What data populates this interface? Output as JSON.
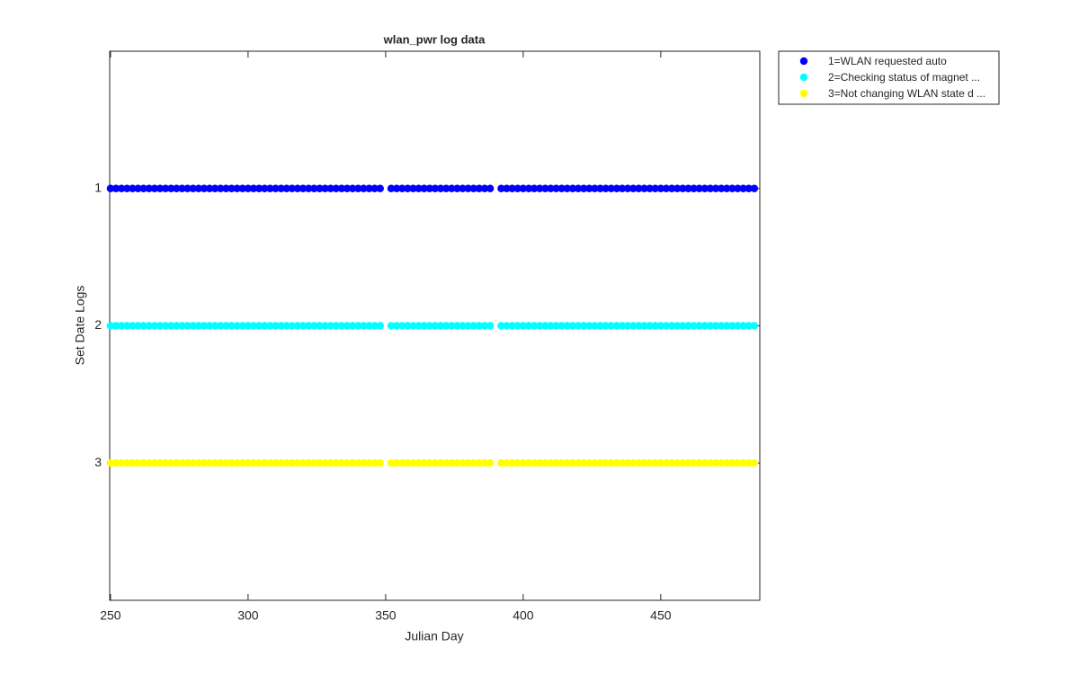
{
  "chart_data": {
    "type": "scatter",
    "title": "wlan_pwr log data",
    "xlabel": "Julian Day",
    "ylabel": "Set Date Logs",
    "x": [
      250,
      252,
      254,
      256,
      258,
      260,
      262,
      264,
      266,
      268,
      270,
      272,
      274,
      276,
      278,
      280,
      282,
      284,
      286,
      288,
      290,
      292,
      294,
      296,
      298,
      300,
      302,
      304,
      306,
      308,
      310,
      312,
      314,
      316,
      318,
      320,
      322,
      324,
      326,
      328,
      330,
      332,
      334,
      336,
      338,
      340,
      342,
      344,
      346,
      348,
      352,
      354,
      356,
      358,
      360,
      362,
      364,
      366,
      368,
      370,
      372,
      374,
      376,
      378,
      380,
      382,
      384,
      386,
      388,
      392,
      394,
      396,
      398,
      400,
      402,
      404,
      406,
      408,
      410,
      412,
      414,
      416,
      418,
      420,
      422,
      424,
      426,
      428,
      430,
      432,
      434,
      436,
      438,
      440,
      442,
      444,
      446,
      448,
      450,
      452,
      454,
      456,
      458,
      460,
      462,
      464,
      466,
      468,
      470,
      472,
      474,
      476,
      478,
      480,
      482,
      484
    ],
    "series": [
      {
        "name": "1=WLAN requested auto",
        "color": "#0000ff",
        "values": [
          1,
          1,
          1,
          1,
          1,
          1,
          1,
          1,
          1,
          1,
          1,
          1,
          1,
          1,
          1,
          1,
          1,
          1,
          1,
          1,
          1,
          1,
          1,
          1,
          1,
          1,
          1,
          1,
          1,
          1,
          1,
          1,
          1,
          1,
          1,
          1,
          1,
          1,
          1,
          1,
          1,
          1,
          1,
          1,
          1,
          1,
          1,
          1,
          1,
          1,
          1,
          1,
          1,
          1,
          1,
          1,
          1,
          1,
          1,
          1,
          1,
          1,
          1,
          1,
          1,
          1,
          1,
          1,
          1,
          1,
          1,
          1,
          1,
          1,
          1,
          1,
          1,
          1,
          1,
          1,
          1,
          1,
          1,
          1,
          1,
          1,
          1,
          1,
          1,
          1,
          1,
          1,
          1,
          1,
          1,
          1,
          1,
          1,
          1,
          1,
          1,
          1,
          1,
          1,
          1,
          1,
          1,
          1,
          1,
          1,
          1,
          1,
          1,
          1,
          1,
          1
        ]
      },
      {
        "name": "2=Checking status of magnet ...",
        "color": "#00ffff",
        "values": [
          2,
          2,
          2,
          2,
          2,
          2,
          2,
          2,
          2,
          2,
          2,
          2,
          2,
          2,
          2,
          2,
          2,
          2,
          2,
          2,
          2,
          2,
          2,
          2,
          2,
          2,
          2,
          2,
          2,
          2,
          2,
          2,
          2,
          2,
          2,
          2,
          2,
          2,
          2,
          2,
          2,
          2,
          2,
          2,
          2,
          2,
          2,
          2,
          2,
          2,
          2,
          2,
          2,
          2,
          2,
          2,
          2,
          2,
          2,
          2,
          2,
          2,
          2,
          2,
          2,
          2,
          2,
          2,
          2,
          2,
          2,
          2,
          2,
          2,
          2,
          2,
          2,
          2,
          2,
          2,
          2,
          2,
          2,
          2,
          2,
          2,
          2,
          2,
          2,
          2,
          2,
          2,
          2,
          2,
          2,
          2,
          2,
          2,
          2,
          2,
          2,
          2,
          2,
          2,
          2,
          2,
          2,
          2,
          2,
          2,
          2,
          2,
          2,
          2,
          2,
          2
        ]
      },
      {
        "name": "3=Not changing WLAN state d ...",
        "color": "#ffff00",
        "values": [
          3,
          3,
          3,
          3,
          3,
          3,
          3,
          3,
          3,
          3,
          3,
          3,
          3,
          3,
          3,
          3,
          3,
          3,
          3,
          3,
          3,
          3,
          3,
          3,
          3,
          3,
          3,
          3,
          3,
          3,
          3,
          3,
          3,
          3,
          3,
          3,
          3,
          3,
          3,
          3,
          3,
          3,
          3,
          3,
          3,
          3,
          3,
          3,
          3,
          3,
          3,
          3,
          3,
          3,
          3,
          3,
          3,
          3,
          3,
          3,
          3,
          3,
          3,
          3,
          3,
          3,
          3,
          3,
          3,
          3,
          3,
          3,
          3,
          3,
          3,
          3,
          3,
          3,
          3,
          3,
          3,
          3,
          3,
          3,
          3,
          3,
          3,
          3,
          3,
          3,
          3,
          3,
          3,
          3,
          3,
          3,
          3,
          3,
          3,
          3,
          3,
          3,
          3,
          3,
          3,
          3,
          3,
          3,
          3,
          3,
          3,
          3,
          3,
          3,
          3,
          3
        ]
      }
    ],
    "xlim": [
      249.7,
      486
    ],
    "xticks": [
      250,
      300,
      350,
      400,
      450
    ],
    "ylim": [
      0,
      4
    ],
    "yticks": [
      1,
      2,
      3
    ],
    "y_reversed": true,
    "legend": "northeastoutside"
  }
}
